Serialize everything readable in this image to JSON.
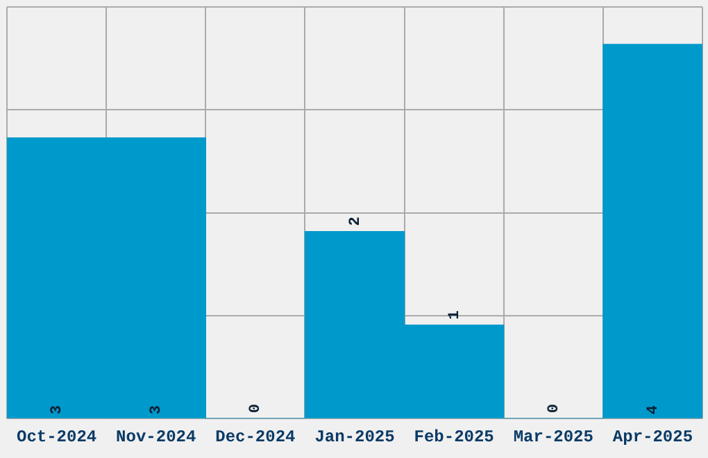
{
  "chart_data": {
    "type": "bar",
    "categories": [
      "Oct-2024",
      "Nov-2024",
      "Dec-2024",
      "Jan-2025",
      "Feb-2025",
      "Mar-2025",
      "Apr-2025"
    ],
    "values": [
      3,
      3,
      0,
      2,
      1,
      0,
      4
    ],
    "color": "#0099cc",
    "ylim": [
      0,
      4.4
    ],
    "yticks": [
      {
        "value": 0,
        "label": null
      },
      {
        "value": 1.1,
        "label": null
      },
      {
        "value": 2.2,
        "label": null
      },
      {
        "value": 3.3,
        "label": null
      },
      {
        "value": 4.4,
        "label": null
      }
    ],
    "tick_labels": "x",
    "grid": true,
    "data_labels": true
  }
}
